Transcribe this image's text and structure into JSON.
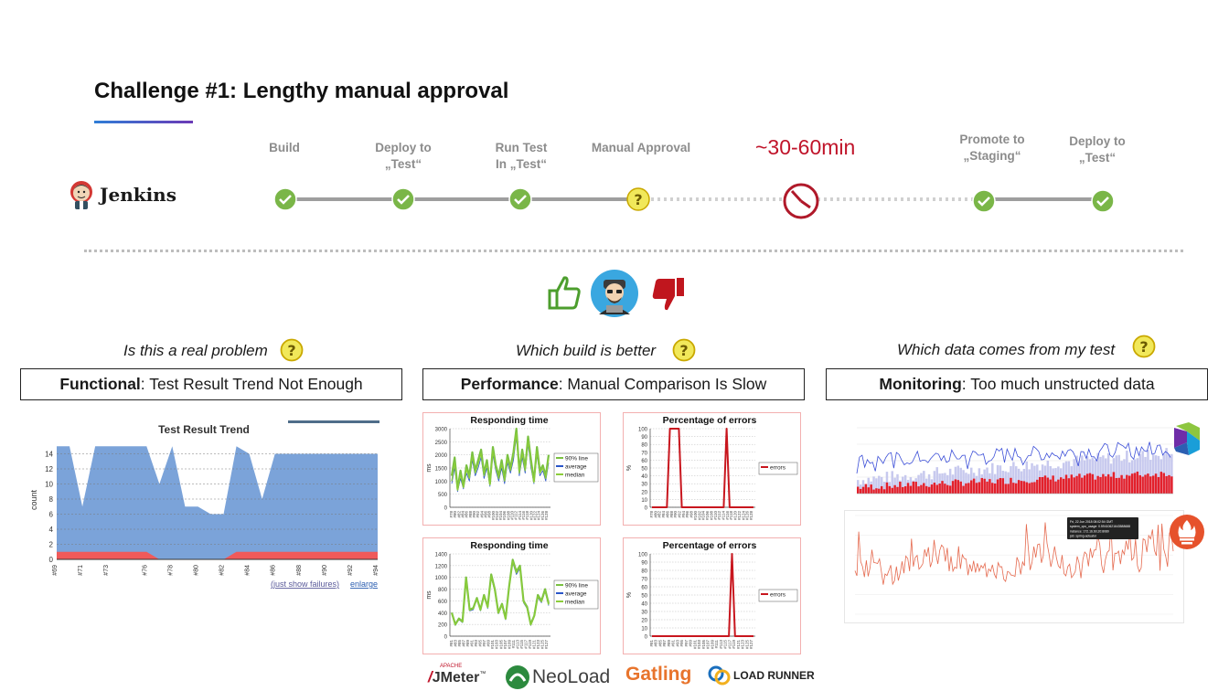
{
  "slide": {
    "title": "Challenge #1: Lengthy manual approval"
  },
  "jenkins": {
    "name": "Jenkins"
  },
  "pipeline": {
    "stages": [
      {
        "line1": "Build",
        "line2": "",
        "status": "passed"
      },
      {
        "line1": "Deploy to",
        "line2": "„Test“",
        "status": "passed"
      },
      {
        "line1": "Run Test",
        "line2": "In „Test“",
        "status": "passed"
      },
      {
        "line1": "Manual Approval",
        "line2": "",
        "status": "pending"
      },
      {
        "line1": "Promote to",
        "line2": "„Staging“",
        "status": "passed"
      },
      {
        "line1": "Deploy to",
        "line2": "„Test“",
        "status": "passed"
      }
    ],
    "wait_time": "~30-60min"
  },
  "sections": {
    "functional": {
      "question": "Is this a real problem",
      "heading_bold": "Functional",
      "heading_rest": ": Test Result Trend Not Enough"
    },
    "performance": {
      "question": "Which build is better",
      "heading_bold": "Performance",
      "heading_rest": ": Manual Comparison Is Slow"
    },
    "monitoring": {
      "question": "Which data comes from my test",
      "heading_bold": "Monitoring",
      "heading_rest": ": Too much unstructed data"
    }
  },
  "trend_chart": {
    "title": "Test Result Trend",
    "ylabel": "count",
    "links": {
      "failures": "(just show failures)",
      "enlarge": "enlarge"
    },
    "colors": {
      "pass": "#7ba3d9",
      "fail": "#f05a5a"
    }
  },
  "perf_charts": {
    "responding_title": "Responding time",
    "errors_title": "Percentage of errors",
    "legend_lines": [
      "90% line",
      "average",
      "median"
    ],
    "legend_errors": "errors",
    "ylabel_ms": "ms",
    "ylabel_pct": "%"
  },
  "tools": {
    "jmeter": "JMeter",
    "jmeter_tag": "APACHE",
    "neoload": "NeoLoad",
    "gatling": "Gatling",
    "loadrunner": "LOAD RUNNER"
  },
  "monitoring": {
    "tooltip_lines": [
      "Fri, 22 Jun 2018 08:02:54 GMT",
      "system_cpu_usage: 0.59410621643588688",
      "instance: 172.16.60.20:8080",
      "job: spring-actuator"
    ]
  },
  "colors": {
    "accent_red": "#c0142a",
    "check_green": "#7ab648",
    "question_yellow": "#f1e85a",
    "thumb_up": "#4c9e2d",
    "thumb_down": "#c0161e"
  },
  "chart_data": [
    {
      "type": "area",
      "title": "Test Result Trend",
      "xlabel": "",
      "ylabel": "count",
      "x": [
        "#69",
        "#70",
        "#71",
        "#72",
        "#73",
        "#74",
        "#75",
        "#76",
        "#77",
        "#78",
        "#79",
        "#80",
        "#81",
        "#82",
        "#83",
        "#84",
        "#85",
        "#86",
        "#87",
        "#88",
        "#89",
        "#90",
        "#91",
        "#92",
        "#93",
        "#94"
      ],
      "xtick_labels": [
        "#69",
        "#71",
        "#73",
        "#76",
        "#78",
        "#80",
        "#82",
        "#84",
        "#86",
        "#88",
        "#90",
        "#92",
        "#94"
      ],
      "series": [
        {
          "name": "pass",
          "values": [
            15,
            15,
            7,
            15,
            15,
            15,
            15,
            15,
            10,
            15,
            7,
            7,
            6,
            6,
            15,
            14,
            8,
            14,
            14,
            14,
            14,
            14,
            14,
            14,
            14,
            14
          ]
        },
        {
          "name": "fail",
          "values": [
            1,
            1,
            1,
            1,
            1,
            1,
            1,
            1,
            0,
            0,
            0,
            0,
            0,
            0,
            1,
            1,
            1,
            1,
            1,
            1,
            1,
            1,
            1,
            1,
            1,
            1
          ]
        }
      ],
      "ylim": [
        0,
        16
      ],
      "yticks": [
        0,
        2,
        4,
        6,
        8,
        10,
        12,
        14
      ],
      "grid": true
    },
    {
      "type": "line",
      "title": "Responding time",
      "ylabel": "ms",
      "ylim": [
        0,
        3000
      ],
      "yticks": [
        0,
        500,
        1000,
        1500,
        2000,
        2500,
        3000
      ],
      "xtick_labels": [
        "#78",
        "#80",
        "#82",
        "#84",
        "#86",
        "#88",
        "#90",
        "#92",
        "#94",
        "#96",
        "#98",
        "#100",
        "#102",
        "#104",
        "#106",
        "#108",
        "#110",
        "#112",
        "#114",
        "#116",
        "#118",
        "#120",
        "#122",
        "#124",
        "#126",
        "#128"
      ],
      "series": [
        {
          "name": "90% line",
          "values": [
            1200,
            1900,
            700,
            1400,
            800,
            1600,
            1200,
            2100,
            1400,
            1800,
            2200,
            1300,
            1800,
            900,
            2300,
            1600,
            1200,
            1800,
            1100,
            2000,
            1500,
            2100,
            3000,
            1400,
            2200,
            1500,
            2700,
            1800,
            1000,
            2300,
            1400,
            1600,
            1200,
            2000
          ]
        },
        {
          "name": "average",
          "values": [
            900,
            1500,
            600,
            1100,
            700,
            1300,
            1000,
            1800,
            1200,
            1500,
            1900,
            1100,
            1500,
            800,
            2000,
            1400,
            1000,
            1500,
            900,
            1700,
            1300,
            1800,
            2700,
            1200,
            1900,
            1300,
            2400,
            1500,
            900,
            2000,
            1200,
            1400,
            1000,
            1700
          ]
        },
        {
          "name": "median",
          "values": [
            1000,
            1700,
            650,
            1250,
            750,
            1450,
            1100,
            1950,
            1300,
            1650,
            2050,
            1200,
            1650,
            850,
            2150,
            1500,
            1100,
            1650,
            1000,
            1850,
            1400,
            1950,
            2850,
            1300,
            2050,
            1400,
            2550,
            1650,
            950,
            2150,
            1300,
            1500,
            1100,
            1850
          ]
        }
      ],
      "legend": "right"
    },
    {
      "type": "line",
      "title": "Percentage of errors",
      "ylabel": "%",
      "ylim": [
        0,
        100
      ],
      "yticks": [
        0,
        10,
        20,
        30,
        40,
        50,
        60,
        70,
        80,
        90,
        100
      ],
      "xtick_labels": [
        "#78",
        "#80",
        "#82",
        "#84",
        "#86",
        "#88",
        "#90",
        "#92",
        "#94",
        "#96",
        "#98",
        "#100",
        "#102",
        "#104",
        "#106",
        "#108",
        "#110",
        "#112",
        "#114",
        "#116",
        "#118",
        "#120",
        "#122",
        "#124",
        "#126",
        "#128"
      ],
      "series": [
        {
          "name": "errors",
          "values": [
            0,
            0,
            0,
            0,
            0,
            0,
            100,
            100,
            100,
            100,
            0,
            0,
            0,
            0,
            0,
            0,
            0,
            0,
            0,
            0,
            0,
            0,
            0,
            0,
            0,
            100,
            0,
            0,
            0,
            0,
            0,
            0,
            0,
            0,
            0
          ]
        }
      ],
      "legend": "right"
    },
    {
      "type": "line",
      "title": "Responding time",
      "ylabel": "ms",
      "ylim": [
        0,
        1400
      ],
      "yticks": [
        0,
        200,
        400,
        600,
        800,
        1000,
        1200,
        1400
      ],
      "xtick_labels": [
        "#81",
        "#83",
        "#85",
        "#87",
        "#89",
        "#91",
        "#93",
        "#95",
        "#97",
        "#99",
        "#101",
        "#103",
        "#105",
        "#107",
        "#109",
        "#111",
        "#113",
        "#115",
        "#117",
        "#119",
        "#121",
        "#123",
        "#125",
        "#127"
      ],
      "series": [
        {
          "name": "90% line",
          "values": [
            400,
            200,
            300,
            250,
            1000,
            450,
            480,
            650,
            450,
            700,
            500,
            1050,
            800,
            400,
            550,
            300,
            850,
            1300,
            1100,
            1200,
            600,
            500,
            200,
            350,
            700,
            600,
            800,
            550
          ]
        },
        {
          "name": "average",
          "values": [
            380,
            180,
            280,
            230,
            960,
            430,
            450,
            620,
            430,
            670,
            470,
            1000,
            760,
            380,
            520,
            280,
            810,
            1250,
            1050,
            1150,
            570,
            470,
            180,
            330,
            660,
            570,
            760,
            520
          ]
        },
        {
          "name": "median",
          "values": [
            390,
            190,
            290,
            240,
            980,
            440,
            465,
            635,
            440,
            685,
            485,
            1025,
            780,
            390,
            535,
            290,
            830,
            1275,
            1075,
            1175,
            585,
            485,
            190,
            340,
            680,
            585,
            780,
            535
          ]
        }
      ],
      "legend": "right"
    },
    {
      "type": "line",
      "title": "Percentage of errors",
      "ylabel": "%",
      "ylim": [
        0,
        100
      ],
      "yticks": [
        0,
        10,
        20,
        30,
        40,
        50,
        60,
        70,
        80,
        90,
        100
      ],
      "xtick_labels": [
        "#81",
        "#83",
        "#85",
        "#87",
        "#89",
        "#91",
        "#93",
        "#95",
        "#97",
        "#99",
        "#101",
        "#103",
        "#105",
        "#107",
        "#109",
        "#111",
        "#113",
        "#115",
        "#117",
        "#119",
        "#121",
        "#123",
        "#125",
        "#127"
      ],
      "series": [
        {
          "name": "errors",
          "values": [
            0,
            0,
            0,
            0,
            0,
            0,
            0,
            0,
            0,
            0,
            0,
            0,
            0,
            0,
            0,
            0,
            0,
            0,
            0,
            0,
            0,
            0,
            0,
            0,
            0,
            0,
            100,
            0,
            0,
            0,
            0,
            0,
            0,
            0
          ]
        }
      ],
      "legend": "right"
    }
  ]
}
